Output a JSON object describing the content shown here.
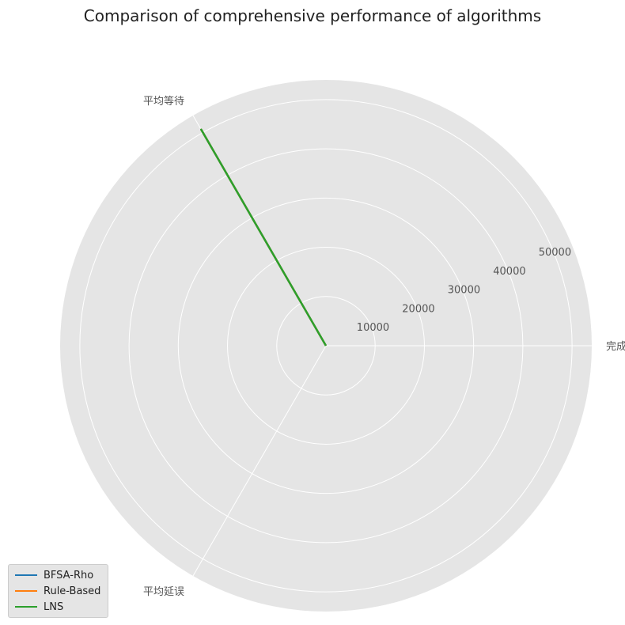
{
  "chart_data": {
    "type": "radar",
    "title": "Comparison of comprehensive performance of algorithms",
    "axes": [
      "完成率",
      "平均等待",
      "平均延误"
    ],
    "r_ticks": [
      10000,
      20000,
      30000,
      40000,
      50000
    ],
    "r_max": 54000,
    "grid": true,
    "legend_position": "lower-left",
    "series": [
      {
        "name": "BFSA-Rho",
        "color": "#1f77b4",
        "values": [
          0,
          50700,
          0
        ]
      },
      {
        "name": "Rule-Based",
        "color": "#ff7f0e",
        "values": [
          0,
          50700,
          0
        ]
      },
      {
        "name": "LNS",
        "color": "#2ca02c",
        "values": [
          0,
          50700,
          0
        ]
      }
    ]
  }
}
